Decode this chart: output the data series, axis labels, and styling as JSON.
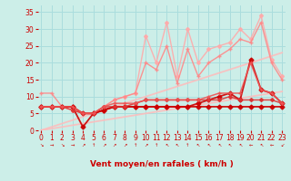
{
  "background_color": "#cceee8",
  "grid_color": "#aadddd",
  "x_label": "Vent moyen/en rafales ( km/h )",
  "ylim": [
    0,
    37
  ],
  "xlim": [
    -0.3,
    23.3
  ],
  "yticks": [
    0,
    5,
    10,
    15,
    20,
    25,
    30,
    35
  ],
  "xticks": [
    0,
    1,
    2,
    3,
    4,
    5,
    6,
    7,
    8,
    9,
    10,
    11,
    12,
    13,
    14,
    15,
    16,
    17,
    18,
    19,
    20,
    21,
    22,
    23
  ],
  "series": [
    {
      "comment": "straight line 1 - light pink, slope 1",
      "x": [
        0,
        23
      ],
      "y": [
        0,
        23
      ],
      "color": "#ffbbbb",
      "lw": 1.3,
      "marker": null,
      "ms": 0
    },
    {
      "comment": "straight line 2 - light pink, slope ~0.5",
      "x": [
        0,
        23
      ],
      "y": [
        0,
        11.5
      ],
      "color": "#ffbbbb",
      "lw": 1.3,
      "marker": null,
      "ms": 0
    },
    {
      "comment": "light pink wavy line - rafales high values",
      "x": [
        0,
        1,
        2,
        3,
        4,
        5,
        6,
        7,
        8,
        9,
        10,
        11,
        12,
        13,
        14,
        15,
        16,
        17,
        18,
        19,
        20,
        21,
        22,
        23
      ],
      "y": [
        7,
        7,
        7,
        6,
        5,
        5,
        7,
        9,
        10,
        11,
        28,
        20,
        32,
        16,
        30,
        20,
        24,
        25,
        26,
        30,
        27,
        34,
        21,
        16
      ],
      "color": "#ffaaaa",
      "lw": 1.0,
      "marker": "D",
      "ms": 2.0
    },
    {
      "comment": "medium pink line - upper trend",
      "x": [
        0,
        1,
        2,
        3,
        4,
        5,
        6,
        7,
        8,
        9,
        10,
        11,
        12,
        13,
        14,
        15,
        16,
        17,
        18,
        19,
        20,
        21,
        22,
        23
      ],
      "y": [
        11,
        11,
        7,
        7,
        5,
        5,
        7,
        9,
        10,
        11,
        20,
        18,
        25,
        14,
        24,
        16,
        20,
        22,
        24,
        27,
        26,
        32,
        20,
        15
      ],
      "color": "#ff8888",
      "lw": 1.0,
      "marker": "+",
      "ms": 3.5
    },
    {
      "comment": "dark red line - moyen values going up then drop",
      "x": [
        0,
        1,
        2,
        3,
        4,
        5,
        6,
        7,
        8,
        9,
        10,
        11,
        12,
        13,
        14,
        15,
        16,
        17,
        18,
        19,
        20,
        21,
        22,
        23
      ],
      "y": [
        7,
        7,
        7,
        7,
        1,
        5,
        6,
        7,
        7,
        7,
        7,
        7,
        7,
        7,
        7,
        8,
        9,
        10,
        11,
        9,
        21,
        12,
        11,
        8
      ],
      "color": "#cc0000",
      "lw": 1.3,
      "marker": "D",
      "ms": 2.5
    },
    {
      "comment": "dark red line - mostly flat around 7",
      "x": [
        0,
        1,
        2,
        3,
        4,
        5,
        6,
        7,
        8,
        9,
        10,
        11,
        12,
        13,
        14,
        15,
        16,
        17,
        18,
        19,
        20,
        21,
        22,
        23
      ],
      "y": [
        7,
        7,
        7,
        7,
        5,
        5,
        6,
        7,
        7,
        7,
        7,
        7,
        7,
        7,
        7,
        7,
        7,
        7,
        7,
        7,
        7,
        7,
        7,
        7
      ],
      "color": "#cc0000",
      "lw": 1.3,
      "marker": "D",
      "ms": 2.5
    },
    {
      "comment": "medium red - slightly variable around 7-10",
      "x": [
        0,
        1,
        2,
        3,
        4,
        5,
        6,
        7,
        8,
        9,
        10,
        11,
        12,
        13,
        14,
        15,
        16,
        17,
        18,
        19,
        20,
        21,
        22,
        23
      ],
      "y": [
        7,
        7,
        7,
        6,
        5,
        5,
        7,
        7,
        7,
        8,
        9,
        9,
        9,
        9,
        9,
        9,
        9,
        9,
        10,
        9,
        9,
        9,
        9,
        8
      ],
      "color": "#dd3333",
      "lw": 1.1,
      "marker": "D",
      "ms": 2.0
    },
    {
      "comment": "medium red - more variable",
      "x": [
        0,
        1,
        2,
        3,
        4,
        5,
        6,
        7,
        8,
        9,
        10,
        11,
        12,
        13,
        14,
        15,
        16,
        17,
        18,
        19,
        20,
        21,
        22,
        23
      ],
      "y": [
        7,
        7,
        7,
        7,
        5,
        5,
        7,
        8,
        8,
        8,
        9,
        9,
        9,
        9,
        9,
        9,
        10,
        11,
        11,
        11,
        20,
        12,
        11,
        8
      ],
      "color": "#ee5555",
      "lw": 1.1,
      "marker": "+",
      "ms": 3.0
    }
  ],
  "wind_symbols": [
    "↘",
    "→",
    "↘",
    "→",
    "↗",
    "↑",
    "↗",
    "↗",
    "↗",
    "↑",
    "↗",
    "↑",
    "↖",
    "↖",
    "↑",
    "↖",
    "↖",
    "↖",
    "↖",
    "↖",
    "←",
    "↖",
    "←",
    "↙"
  ],
  "axis_label_color": "#cc0000",
  "tick_color": "#cc0000",
  "tick_fontsize": 5.5,
  "xlabel_fontsize": 6.5
}
